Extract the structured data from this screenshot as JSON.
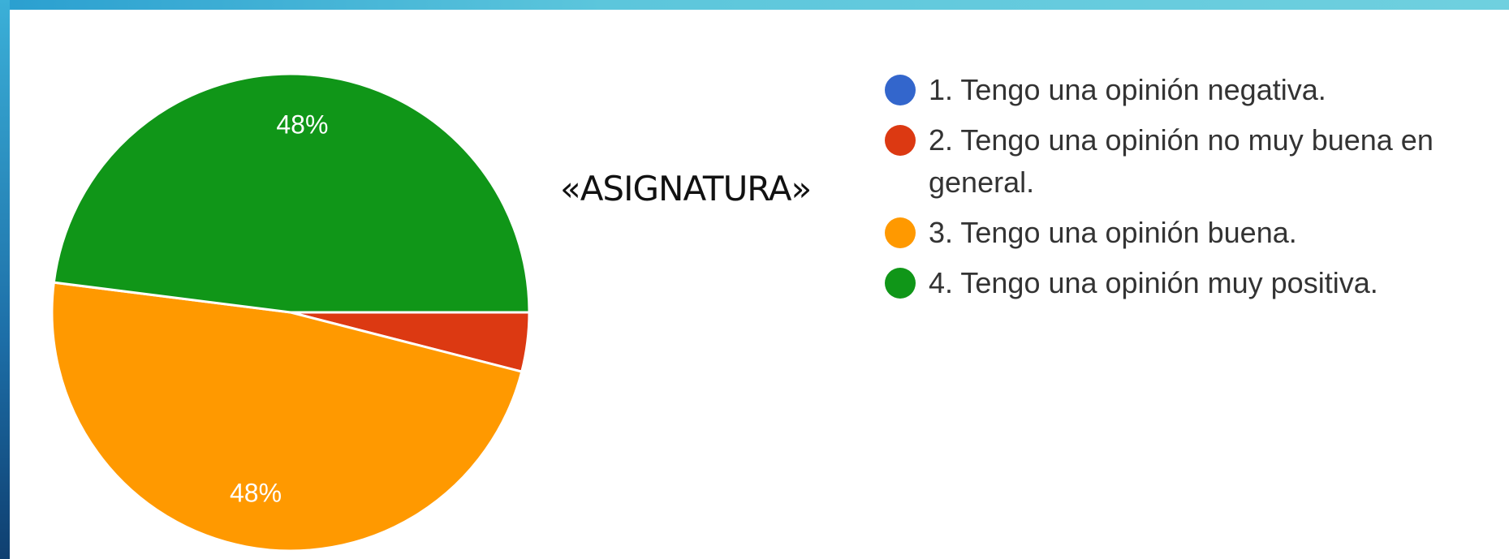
{
  "chart_data": {
    "type": "pie",
    "subtitle": "«ASIGNATURA»",
    "categories": [
      "1. Tengo una opinión negativa.",
      "2. Tengo una opinión no muy buena en general.",
      "3. Tengo una opinión buena.",
      "4. Tengo una opinión muy positiva."
    ],
    "values": [
      0,
      4,
      48,
      48
    ],
    "value_labels": [
      null,
      null,
      "48%",
      "48%"
    ],
    "colors": [
      "#3366cc",
      "#dc3912",
      "#ff9900",
      "#109618"
    ]
  }
}
